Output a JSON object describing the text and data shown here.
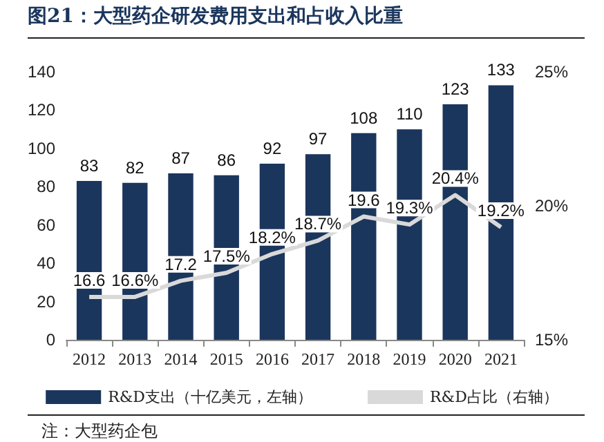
{
  "chart_data": {
    "type": "bar",
    "title": "图21：大型药企研发费用支出和占收入比重",
    "categories": [
      "2012",
      "2013",
      "2014",
      "2015",
      "2016",
      "2017",
      "2018",
      "2019",
      "2020",
      "2021"
    ],
    "series": [
      {
        "name": "R&D支出（十亿美元，左轴）",
        "color": "#1b365d",
        "values": [
          83,
          82,
          87,
          86,
          92,
          97,
          108,
          110,
          123,
          133
        ],
        "data_labels": true
      },
      {
        "name": "R&D占比（右轴）",
        "type": "line",
        "axis": "y2",
        "color": "#d9d9d9",
        "values": [
          16.6,
          16.6,
          17.2,
          17.5,
          18.2,
          18.7,
          19.6,
          19.3,
          20.4,
          19.2
        ],
        "value_labels": [
          "16.6",
          "16.6%",
          "17.2",
          "17.5%",
          "18.2%",
          "18.7%",
          "19.6",
          "19.3%",
          "20.4%",
          "19.2%"
        ]
      }
    ],
    "ylim": [
      0,
      140
    ],
    "yticks": [
      0,
      20,
      40,
      60,
      80,
      100,
      120,
      140
    ],
    "y2lim": [
      15,
      25
    ],
    "y2ticks": [
      {
        "value": 15,
        "label": "15%"
      },
      {
        "value": 20,
        "label": "20%"
      },
      {
        "value": 25,
        "label": "25%"
      }
    ],
    "grid": false,
    "legend": "bottom",
    "marker": "none",
    "annotations": [
      "注：大型药企包"
    ]
  }
}
